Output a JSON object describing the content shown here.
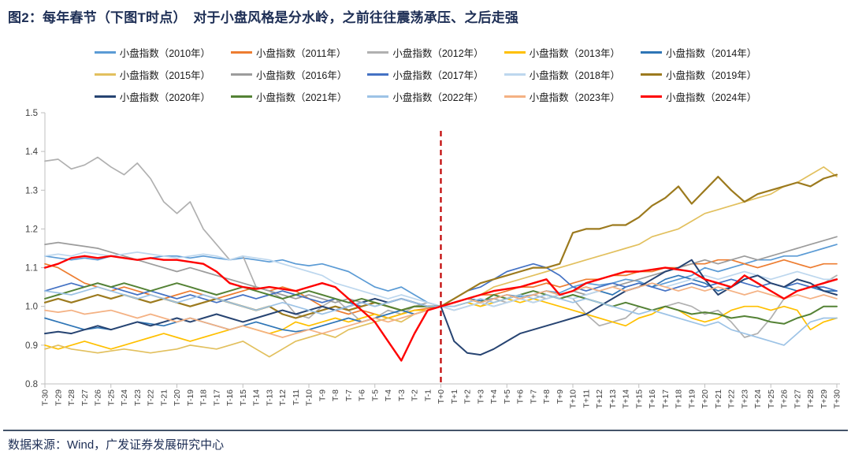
{
  "title": "图2：每年春节（下图T时点）　对于小盘风格是分水岭，之前往往震荡承压、之后走强",
  "footer": {
    "source_text": "数据来源：Wind，广发证券发展研究中心"
  },
  "colors": {
    "title_text": "#1d2e55",
    "axis_line": "#BFBFBF",
    "tick_label": "#3f3f3f",
    "vline_red": "#C00000",
    "footer_rule": "#44546A"
  },
  "chart_data": {
    "type": "line",
    "title": "",
    "xlabel": "",
    "ylabel": "",
    "ylim": [
      0.8,
      1.5
    ],
    "y_ticks": [
      0.8,
      0.9,
      1.0,
      1.1,
      1.2,
      1.3,
      1.4,
      1.5
    ],
    "grid": false,
    "legend_position": "top",
    "annotations": [
      {
        "type": "vline",
        "x_label": "T+0",
        "style": "dashed",
        "color": "#C00000"
      }
    ],
    "x_labels": [
      "T-30",
      "T-29",
      "T-28",
      "T-27",
      "T-26",
      "T-25",
      "T-24",
      "T-23",
      "T-22",
      "T-21",
      "T-20",
      "T-19",
      "T-18",
      "T-17",
      "T-16",
      "T-15",
      "T-14",
      "T-13",
      "T-12",
      "T-11",
      "T-10",
      "T-9",
      "T-8",
      "T-7",
      "T-6",
      "T-5",
      "T-4",
      "T-3",
      "T-2",
      "T-1",
      "T+0",
      "T+1",
      "T+2",
      "T+3",
      "T+4",
      "T+5",
      "T+6",
      "T+7",
      "T+8",
      "T+9",
      "T+10",
      "T+11",
      "T+12",
      "T+13",
      "T+14",
      "T+15",
      "T+16",
      "T+17",
      "T+18",
      "T+19",
      "T+20",
      "T+21",
      "T+22",
      "T+23",
      "T+24",
      "T+25",
      "T+26",
      "T+27",
      "T+28",
      "T+29",
      "T+30"
    ],
    "series": [
      {
        "name": "小盘指数（2010年）",
        "year": 2010,
        "color": "#5B9BD5",
        "values": [
          1.13,
          1.125,
          1.12,
          1.125,
          1.12,
          1.13,
          1.125,
          1.12,
          1.125,
          1.13,
          1.13,
          1.125,
          1.13,
          1.125,
          1.12,
          1.125,
          1.12,
          1.115,
          1.12,
          1.11,
          1.105,
          1.11,
          1.1,
          1.09,
          1.07,
          1.05,
          1.04,
          1.05,
          1.03,
          1.01,
          1.0,
          1.01,
          1.02,
          1.015,
          1.02,
          1.03,
          1.025,
          1.03,
          1.04,
          1.035,
          1.05,
          1.06,
          1.055,
          1.06,
          1.07,
          1.065,
          1.05,
          1.06,
          1.07,
          1.08,
          1.1,
          1.09,
          1.1,
          1.11,
          1.12,
          1.12,
          1.13,
          1.13,
          1.14,
          1.15,
          1.16
        ]
      },
      {
        "name": "小盘指数（2011年）",
        "year": 2011,
        "color": "#ED7D31",
        "values": [
          1.11,
          1.1,
          1.08,
          1.06,
          1.05,
          1.04,
          1.05,
          1.04,
          1.03,
          1.02,
          1.03,
          1.04,
          1.03,
          1.02,
          1.03,
          1.04,
          1.05,
          1.04,
          1.05,
          1.04,
          1.02,
          1.0,
          0.99,
          0.98,
          0.99,
          0.98,
          0.97,
          0.98,
          0.99,
          0.995,
          1.0,
          1.01,
          1.02,
          1.03,
          1.03,
          1.04,
          1.05,
          1.05,
          1.06,
          1.05,
          1.06,
          1.07,
          1.07,
          1.08,
          1.08,
          1.09,
          1.09,
          1.1,
          1.1,
          1.11,
          1.11,
          1.12,
          1.12,
          1.11,
          1.1,
          1.11,
          1.12,
          1.11,
          1.1,
          1.11,
          1.11
        ]
      },
      {
        "name": "小盘指数（2012年）",
        "year": 2012,
        "color": "#B0B0B0",
        "values": [
          1.375,
          1.38,
          1.355,
          1.365,
          1.385,
          1.36,
          1.34,
          1.37,
          1.33,
          1.27,
          1.24,
          1.27,
          1.2,
          1.16,
          1.12,
          1.13,
          1.05,
          1.04,
          1.02,
          0.98,
          0.97,
          1.0,
          1.02,
          0.99,
          0.96,
          0.97,
          0.99,
          0.98,
          1.0,
          1.01,
          1.0,
          1.0,
          1.01,
          1.0,
          1.02,
          1.01,
          1.02,
          1.03,
          1.02,
          1.03,
          1.02,
          0.98,
          0.95,
          0.96,
          0.97,
          1.0,
          0.99,
          1.0,
          1.01,
          1.0,
          0.98,
          0.99,
          0.96,
          0.92,
          0.93,
          0.97,
          1.02,
          1.04,
          1.05,
          1.06,
          1.08
        ]
      },
      {
        "name": "小盘指数（2013年）",
        "year": 2013,
        "color": "#FFC000",
        "values": [
          0.9,
          0.89,
          0.9,
          0.91,
          0.9,
          0.89,
          0.9,
          0.91,
          0.92,
          0.93,
          0.92,
          0.91,
          0.92,
          0.93,
          0.94,
          0.95,
          0.94,
          0.93,
          0.94,
          0.96,
          0.95,
          0.96,
          0.97,
          0.96,
          0.97,
          0.98,
          0.97,
          0.98,
          0.99,
          0.99,
          1.0,
          1.0,
          1.01,
          1.0,
          1.01,
          1.02,
          1.01,
          1.02,
          1.01,
          1.0,
          0.99,
          0.98,
          0.97,
          0.96,
          0.95,
          0.97,
          0.98,
          1.0,
          0.99,
          0.97,
          0.96,
          0.97,
          0.99,
          1.0,
          1.0,
          0.99,
          1.0,
          0.99,
          0.94,
          0.96,
          0.97
        ]
      },
      {
        "name": "小盘指数（2014年）",
        "year": 2014,
        "color": "#2E75B6",
        "values": [
          0.97,
          0.96,
          0.95,
          0.94,
          0.945,
          0.94,
          0.95,
          0.96,
          0.955,
          0.95,
          0.96,
          0.97,
          0.96,
          0.95,
          0.94,
          0.95,
          0.96,
          0.95,
          0.94,
          0.935,
          0.94,
          0.95,
          0.96,
          0.97,
          0.96,
          0.97,
          0.98,
          0.99,
          0.98,
          0.99,
          1.0,
          1.01,
          1.02,
          1.015,
          1.02,
          1.03,
          1.02,
          1.03,
          1.04,
          1.03,
          1.04,
          1.05,
          1.04,
          1.03,
          1.05,
          1.06,
          1.05,
          1.07,
          1.08,
          1.07,
          1.06,
          1.04,
          1.05,
          1.07,
          1.08,
          1.06,
          1.05,
          1.04,
          1.05,
          1.04,
          1.04
        ]
      },
      {
        "name": "小盘指数（2015年）",
        "year": 2015,
        "color": "#E2C05E",
        "values": [
          0.89,
          0.9,
          0.89,
          0.885,
          0.88,
          0.885,
          0.89,
          0.885,
          0.88,
          0.885,
          0.89,
          0.9,
          0.895,
          0.89,
          0.9,
          0.91,
          0.89,
          0.87,
          0.89,
          0.91,
          0.92,
          0.93,
          0.92,
          0.94,
          0.95,
          0.96,
          0.97,
          0.96,
          0.98,
          0.99,
          1.0,
          1.01,
          1.02,
          1.03,
          1.05,
          1.06,
          1.07,
          1.08,
          1.09,
          1.1,
          1.11,
          1.12,
          1.13,
          1.14,
          1.15,
          1.16,
          1.18,
          1.19,
          1.2,
          1.22,
          1.24,
          1.25,
          1.26,
          1.27,
          1.28,
          1.29,
          1.31,
          1.32,
          1.34,
          1.36,
          1.335
        ]
      },
      {
        "name": "小盘指数（2016年）",
        "year": 2016,
        "color": "#9C9C9C",
        "values": [
          1.16,
          1.165,
          1.16,
          1.155,
          1.15,
          1.14,
          1.13,
          1.12,
          1.11,
          1.1,
          1.09,
          1.1,
          1.09,
          1.08,
          1.07,
          1.06,
          1.05,
          1.04,
          1.03,
          1.02,
          1.03,
          1.02,
          1.01,
          1.02,
          1.01,
          1.0,
          1.01,
          1.02,
          1.01,
          1.0,
          1.0,
          0.99,
          1.0,
          1.01,
          1.0,
          1.01,
          1.02,
          1.01,
          1.02,
          1.03,
          1.04,
          1.03,
          1.04,
          1.05,
          1.06,
          1.07,
          1.08,
          1.09,
          1.1,
          1.11,
          1.12,
          1.11,
          1.12,
          1.13,
          1.12,
          1.13,
          1.14,
          1.15,
          1.16,
          1.17,
          1.18
        ]
      },
      {
        "name": "小盘指数（2017年）",
        "year": 2017,
        "color": "#4472C4",
        "values": [
          1.04,
          1.05,
          1.06,
          1.05,
          1.06,
          1.05,
          1.04,
          1.03,
          1.04,
          1.03,
          1.02,
          1.03,
          1.02,
          1.01,
          1.02,
          1.03,
          1.02,
          1.03,
          1.04,
          1.03,
          1.02,
          1.01,
          1.02,
          1.01,
          1.0,
          1.01,
          1.0,
          0.99,
          1.0,
          1.0,
          1.0,
          1.02,
          1.04,
          1.05,
          1.07,
          1.09,
          1.1,
          1.11,
          1.1,
          1.08,
          1.05,
          1.04,
          1.05,
          1.06,
          1.05,
          1.06,
          1.05,
          1.04,
          1.05,
          1.06,
          1.05,
          1.06,
          1.07,
          1.06,
          1.05,
          1.06,
          1.05,
          1.06,
          1.05,
          1.05,
          1.04
        ]
      },
      {
        "name": "小盘指数（2018年）",
        "year": 2018,
        "color": "#BDD7EE",
        "values": [
          1.13,
          1.135,
          1.13,
          1.14,
          1.135,
          1.13,
          1.135,
          1.14,
          1.135,
          1.13,
          1.125,
          1.13,
          1.135,
          1.13,
          1.12,
          1.13,
          1.125,
          1.12,
          1.11,
          1.1,
          1.09,
          1.08,
          1.06,
          1.05,
          1.04,
          1.03,
          1.02,
          1.03,
          1.02,
          1.01,
          1.0,
          0.99,
          1.0,
          1.01,
          1.0,
          1.01,
          1.02,
          1.01,
          1.02,
          1.03,
          1.02,
          1.03,
          1.04,
          1.05,
          1.04,
          1.05,
          1.06,
          1.05,
          1.06,
          1.07,
          1.08,
          1.07,
          1.08,
          1.09,
          1.08,
          1.07,
          1.08,
          1.09,
          1.08,
          1.07,
          1.07
        ]
      },
      {
        "name": "小盘指数（2019年）",
        "year": 2019,
        "color": "#9C7A1E",
        "values": [
          1.01,
          1.02,
          1.01,
          1.02,
          1.03,
          1.02,
          1.03,
          1.02,
          1.01,
          1.02,
          1.01,
          1.0,
          1.01,
          1.02,
          1.01,
          1.0,
          0.99,
          1.0,
          0.98,
          0.97,
          0.98,
          0.99,
          1.0,
          0.99,
          1.0,
          1.01,
          1.0,
          0.99,
          1.0,
          1.0,
          1.0,
          1.02,
          1.04,
          1.06,
          1.07,
          1.08,
          1.09,
          1.1,
          1.1,
          1.11,
          1.19,
          1.2,
          1.2,
          1.21,
          1.21,
          1.23,
          1.26,
          1.28,
          1.31,
          1.265,
          1.3,
          1.335,
          1.3,
          1.27,
          1.29,
          1.3,
          1.31,
          1.32,
          1.31,
          1.33,
          1.34
        ]
      },
      {
        "name": "小盘指数（2020年）",
        "year": 2020,
        "color": "#274472",
        "values": [
          0.93,
          0.935,
          0.93,
          0.94,
          0.95,
          0.94,
          0.95,
          0.96,
          0.95,
          0.96,
          0.97,
          0.96,
          0.97,
          0.98,
          0.97,
          0.96,
          0.97,
          0.98,
          0.99,
          0.98,
          0.99,
          1.0,
          0.99,
          1.0,
          1.01,
          1.02,
          1.01,
          1.02,
          1.01,
          1.0,
          1.0,
          0.91,
          0.88,
          0.875,
          0.89,
          0.91,
          0.93,
          0.94,
          0.95,
          0.96,
          0.97,
          0.98,
          1.0,
          1.02,
          1.04,
          1.05,
          1.07,
          1.09,
          1.1,
          1.12,
          1.07,
          1.03,
          1.05,
          1.07,
          1.08,
          1.06,
          1.05,
          1.07,
          1.06,
          1.04,
          1.03
        ]
      },
      {
        "name": "小盘指数（2021年）",
        "year": 2021,
        "color": "#548235",
        "values": [
          1.02,
          1.03,
          1.04,
          1.05,
          1.06,
          1.05,
          1.06,
          1.05,
          1.04,
          1.05,
          1.06,
          1.05,
          1.04,
          1.03,
          1.04,
          1.05,
          1.04,
          1.03,
          1.02,
          1.03,
          1.04,
          1.03,
          1.02,
          1.01,
          1.02,
          1.01,
          1.0,
          0.99,
          1.0,
          1.0,
          1.0,
          1.01,
          1.02,
          1.01,
          1.03,
          1.02,
          1.03,
          1.04,
          1.03,
          1.02,
          1.03,
          1.02,
          1.01,
          1.0,
          1.01,
          1.0,
          0.99,
          1.0,
          0.99,
          0.98,
          0.985,
          0.98,
          0.97,
          0.975,
          0.97,
          0.96,
          0.955,
          0.97,
          0.98,
          1.0,
          1.0
        ]
      },
      {
        "name": "小盘指数（2022年）",
        "year": 2022,
        "color": "#9DC3E6",
        "values": [
          1.04,
          1.035,
          1.03,
          1.04,
          1.05,
          1.04,
          1.03,
          1.02,
          1.03,
          1.02,
          1.01,
          1.02,
          1.03,
          1.02,
          1.01,
          1.0,
          0.99,
          1.0,
          1.01,
          1.0,
          0.99,
          0.98,
          0.99,
          1.0,
          1.01,
          1.0,
          1.01,
          1.02,
          1.01,
          1.0,
          1.0,
          1.0,
          1.01,
          1.02,
          1.01,
          1.02,
          1.03,
          1.02,
          1.03,
          1.02,
          1.01,
          1.02,
          1.01,
          1.0,
          0.99,
          0.98,
          0.99,
          0.98,
          0.97,
          0.96,
          0.95,
          0.96,
          0.94,
          0.93,
          0.92,
          0.91,
          0.9,
          0.93,
          0.96,
          0.97,
          0.97
        ]
      },
      {
        "name": "小盘指数（2023年）",
        "year": 2023,
        "color": "#F4B183",
        "values": [
          0.99,
          0.985,
          0.99,
          0.98,
          0.985,
          0.99,
          0.98,
          0.97,
          0.98,
          0.97,
          0.96,
          0.97,
          0.96,
          0.95,
          0.94,
          0.95,
          0.94,
          0.93,
          0.92,
          0.93,
          0.94,
          0.93,
          0.94,
          0.95,
          0.96,
          0.97,
          0.96,
          0.97,
          0.98,
          0.99,
          1.0,
          1.01,
          1.02,
          1.01,
          1.02,
          1.03,
          1.02,
          1.03,
          1.04,
          1.03,
          1.04,
          1.05,
          1.04,
          1.05,
          1.04,
          1.05,
          1.06,
          1.05,
          1.04,
          1.05,
          1.04,
          1.05,
          1.04,
          1.03,
          1.04,
          1.03,
          1.02,
          1.03,
          1.02,
          1.03,
          1.02
        ]
      },
      {
        "name": "小盘指数（2024年）",
        "year": 2024,
        "color": "#FE0000",
        "values": [
          1.1,
          1.11,
          1.125,
          1.13,
          1.125,
          1.13,
          1.125,
          1.12,
          1.125,
          1.12,
          1.12,
          1.115,
          1.11,
          1.09,
          1.06,
          1.05,
          1.045,
          1.05,
          1.045,
          1.04,
          1.05,
          1.06,
          1.05,
          1.02,
          0.99,
          0.96,
          0.91,
          0.86,
          0.93,
          0.99,
          1.0,
          1.01,
          1.02,
          1.03,
          1.04,
          1.045,
          1.05,
          1.06,
          1.07,
          1.03,
          1.04,
          1.06,
          1.07,
          1.08,
          1.09,
          1.09,
          1.095,
          1.1,
          1.095,
          1.09,
          1.07,
          1.06,
          1.05,
          1.08,
          1.06,
          1.04,
          1.02,
          1.04,
          1.05,
          1.06,
          1.07
        ]
      }
    ]
  }
}
